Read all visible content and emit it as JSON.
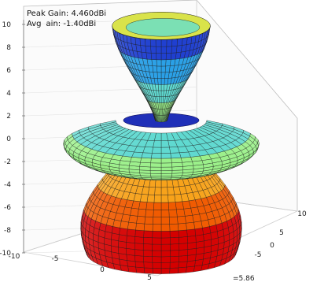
{
  "chart_data": {
    "type": "surface3d",
    "title": "",
    "annotations": {
      "peak_gain": "Peak Gain: 4.460dBi",
      "avg_gain": "Avg",
      "avg_gain_rest": "ain: -1.40dBi",
      "corner_text": "=5.86"
    },
    "z_ticks": [
      "10",
      "8",
      "6",
      "4",
      "2",
      "0",
      "-2",
      "-4",
      "-6",
      "-8",
      "-10"
    ],
    "x_ticks": [
      "-10",
      "-5",
      "0",
      "5"
    ],
    "y_ticks": [
      "-5",
      "0",
      "5",
      "10"
    ],
    "zlim": [
      -10,
      10
    ],
    "grid": true,
    "colormap": [
      "#d40000",
      "#f05a00",
      "#f7a21a",
      "#f3e640",
      "#d9f25a",
      "#9bf08a",
      "#5fd9d0",
      "#2aa0e6",
      "#1f3fd0"
    ],
    "lobes": [
      {
        "name": "",
        "z_bottom": -10,
        "z_top": -2.4,
        "max_radius": 7.2
      },
      {
        "name": "",
        "z_bottom": -2.4,
        "z_top": 1.6,
        "max_radius": 8.3
      },
      {
        "name": "",
        "z_bottom": 1.6,
        "z_top": 10.5,
        "max_radius": 4.2
      }
    ]
  }
}
